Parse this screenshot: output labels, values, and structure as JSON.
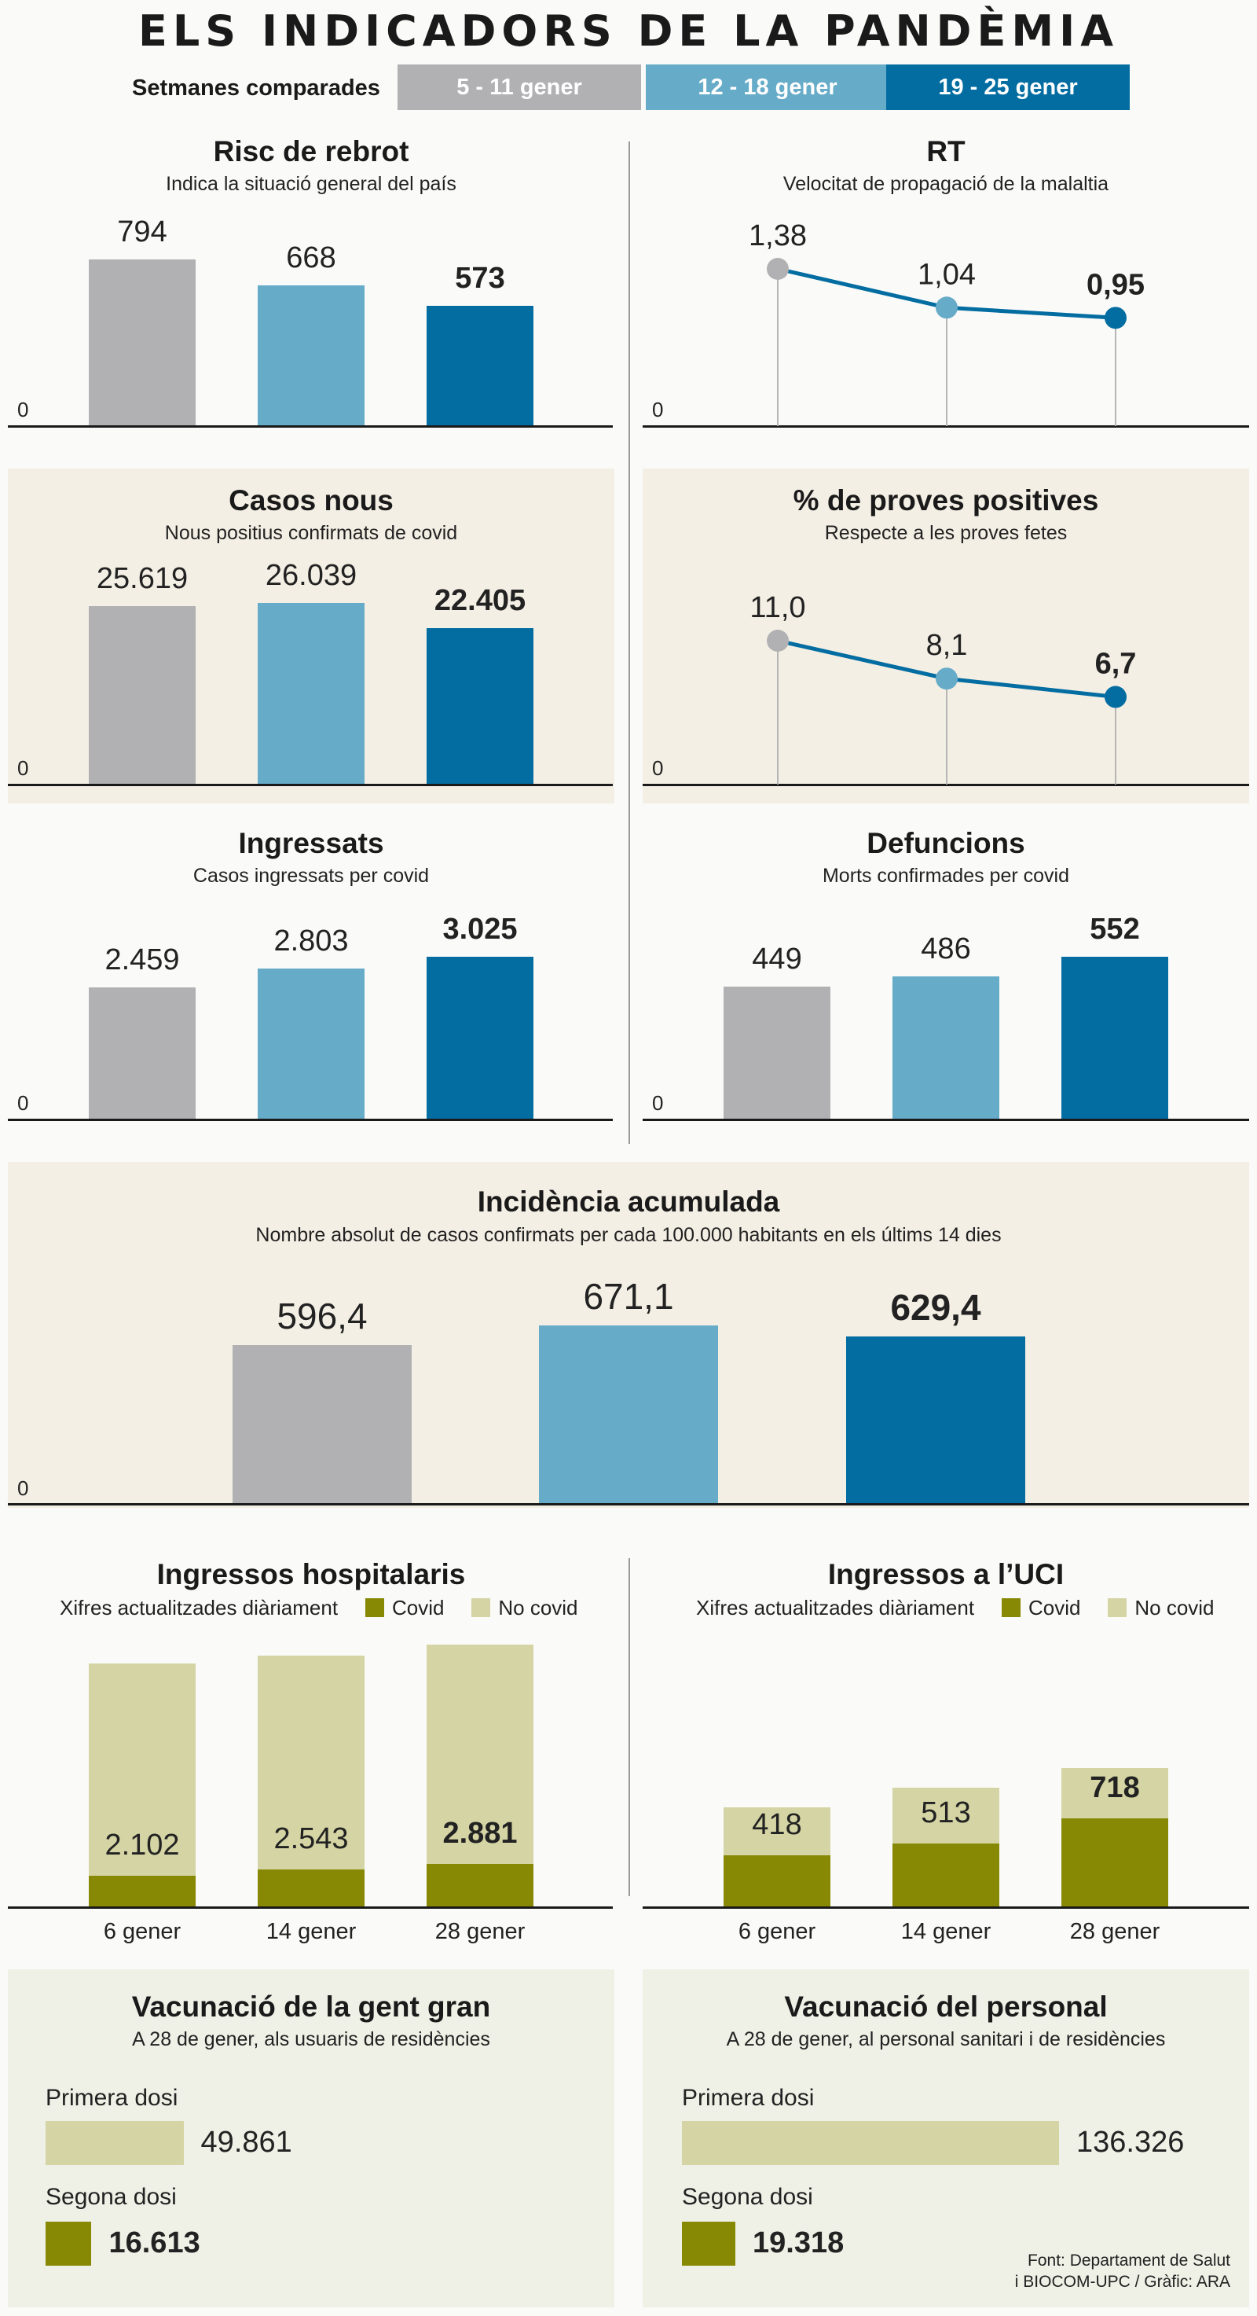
{
  "title": "ELS INDICADORS DE LA PANDÈMIA",
  "legend": {
    "label": "Setmanes comparades",
    "weeks": [
      "5 - 11 gener",
      "12 - 18 gener",
      "19 - 25 gener"
    ]
  },
  "colors": {
    "week1": "#b1b1b3",
    "week2": "#66abc8",
    "week3": "#036da2",
    "covid": "#878804",
    "nocovid": "#d4d4a4"
  },
  "panels": {
    "risc": {
      "title": "Risc de rebrot",
      "subtitle": "Indica la situació general del país",
      "labels": [
        "794",
        "668",
        "573"
      ],
      "zero": "0"
    },
    "rt": {
      "title": "RT",
      "subtitle": "Velocitat de propagació de la malaltia",
      "labels": [
        "1,38",
        "1,04",
        "0,95"
      ],
      "zero": "0"
    },
    "casos": {
      "title": "Casos nous",
      "subtitle": "Nous positius confirmats de covid",
      "labels": [
        "25.619",
        "26.039",
        "22.405"
      ],
      "zero": "0"
    },
    "proves": {
      "title": "% de proves positives",
      "subtitle": "Respecte a les proves fetes",
      "labels": [
        "11,0",
        "8,1",
        "6,7"
      ],
      "zero": "0"
    },
    "ingressats": {
      "title": "Ingressats",
      "subtitle": "Casos ingressats per covid",
      "labels": [
        "2.459",
        "2.803",
        "3.025"
      ],
      "zero": "0"
    },
    "defuncions": {
      "title": "Defuncions",
      "subtitle": "Morts confirmades per covid",
      "labels": [
        "449",
        "486",
        "552"
      ],
      "zero": "0"
    },
    "incidencia": {
      "title": "Incidència acumulada",
      "subtitle": "Nombre absolut de casos confirmats per cada 100.000 habitants en els últims 14 dies",
      "labels": [
        "596,4",
        "671,1",
        "629,4"
      ],
      "zero": "0"
    },
    "hosp": {
      "title": "Ingressos hospitalaris",
      "subtitle": "Xifres actualitzades diàriament",
      "covid_label": "Covid",
      "nocovid_label": "No covid",
      "labels": [
        "2.102",
        "2.543",
        "2.881"
      ],
      "dates": [
        "6 gener",
        "14 gener",
        "28 gener"
      ]
    },
    "uci": {
      "title": "Ingressos a l’UCI",
      "subtitle": "Xifres actualitzades diàriament",
      "covid_label": "Covid",
      "nocovid_label": "No covid",
      "labels": [
        "418",
        "513",
        "718"
      ],
      "dates": [
        "6 gener",
        "14 gener",
        "28 gener"
      ]
    },
    "vac_gran": {
      "title": "Vacunació de la gent gran",
      "subtitle": "A 28 de gener, als usuaris de residències",
      "first_label": "Primera dosi",
      "first_value": "49.861",
      "second_label": "Segona dosi",
      "second_value": "16.613"
    },
    "vac_pers": {
      "title": "Vacunació del personal",
      "subtitle": "A 28 de gener, al personal sanitari i de residències",
      "first_label": "Primera dosi",
      "first_value": "136.326",
      "second_label": "Segona dosi",
      "second_value": "19.318"
    }
  },
  "source": {
    "line1": "Font: Departament de Salut",
    "line2": "i BIOCOM-UPC / Gràfic: ARA"
  },
  "chart_data": [
    {
      "type": "bar",
      "title": "Risc de rebrot",
      "categories": [
        "5 - 11 gener",
        "12 - 18 gener",
        "19 - 25 gener"
      ],
      "values": [
        794,
        668,
        573
      ],
      "ylim": [
        0,
        794
      ]
    },
    {
      "type": "line",
      "title": "RT",
      "categories": [
        "5 - 11 gener",
        "12 - 18 gener",
        "19 - 25 gener"
      ],
      "values": [
        1.38,
        1.04,
        0.95
      ],
      "ylim": [
        0,
        1.38
      ]
    },
    {
      "type": "bar",
      "title": "Casos nous",
      "categories": [
        "5 - 11 gener",
        "12 - 18 gener",
        "19 - 25 gener"
      ],
      "values": [
        25619,
        26039,
        22405
      ],
      "ylim": [
        0,
        26039
      ]
    },
    {
      "type": "line",
      "title": "% de proves positives",
      "categories": [
        "5 - 11 gener",
        "12 - 18 gener",
        "19 - 25 gener"
      ],
      "values": [
        11.0,
        8.1,
        6.7
      ],
      "ylim": [
        0,
        11.0
      ]
    },
    {
      "type": "bar",
      "title": "Ingressats",
      "categories": [
        "5 - 11 gener",
        "12 - 18 gener",
        "19 - 25 gener"
      ],
      "values": [
        2459,
        2803,
        3025
      ],
      "ylim": [
        0,
        3025
      ]
    },
    {
      "type": "bar",
      "title": "Defuncions",
      "categories": [
        "5 - 11 gener",
        "12 - 18 gener",
        "19 - 25 gener"
      ],
      "values": [
        449,
        486,
        552
      ],
      "ylim": [
        0,
        552
      ]
    },
    {
      "type": "bar",
      "title": "Incidència acumulada",
      "categories": [
        "5 - 11 gener",
        "12 - 18 gener",
        "19 - 25 gener"
      ],
      "values": [
        596.4,
        671.1,
        629.4
      ],
      "ylim": [
        0,
        671.1
      ]
    },
    {
      "type": "bar",
      "title": "Ingressos hospitalaris",
      "categories": [
        "6 gener",
        "14 gener",
        "28 gener"
      ],
      "series": [
        {
          "name": "Covid",
          "values": [
            2102,
            2543,
            2881
          ]
        },
        {
          "name": "No covid",
          "values": [
            14500,
            14600,
            15000
          ]
        }
      ]
    },
    {
      "type": "bar",
      "title": "Ingressos a l’UCI",
      "categories": [
        "6 gener",
        "14 gener",
        "28 gener"
      ],
      "series": [
        {
          "name": "Covid",
          "values": [
            418,
            513,
            718
          ]
        },
        {
          "name": "No covid",
          "values": [
            385,
            453,
            407
          ]
        }
      ]
    },
    {
      "type": "bar",
      "title": "Vacunació de la gent gran",
      "categories": [
        "Primera dosi",
        "Segona dosi"
      ],
      "values": [
        49861,
        16613
      ]
    },
    {
      "type": "bar",
      "title": "Vacunació del personal",
      "categories": [
        "Primera dosi",
        "Segona dosi"
      ],
      "values": [
        136326,
        19318
      ]
    }
  ]
}
